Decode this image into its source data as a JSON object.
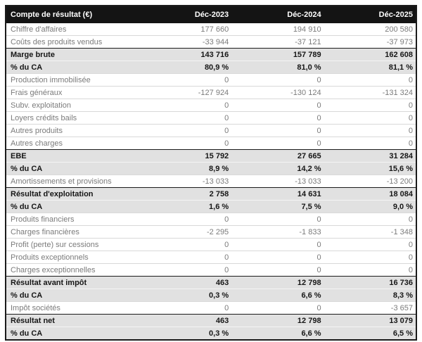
{
  "title": "Compte de résultat (€)",
  "colors": {
    "header_bg": "#141414",
    "header_text": "#ffffff",
    "highlight_row_bg": "#e1e1e1",
    "normal_text": "#7b7b7b",
    "bold_text": "#161616",
    "outer_border": "#1b1b1b",
    "row_divider": "#d9d9d9"
  },
  "chart_data": {
    "type": "table",
    "title": "Compte de résultat (€)",
    "columns": [
      "Compte de résultat (€)",
      "Déc-2023",
      "Déc-2024",
      "Déc-2025"
    ],
    "rows": [
      {
        "label": "Chiffre d'affaires",
        "values": [
          "177 660",
          "194 910",
          "200 580"
        ],
        "style": "normal"
      },
      {
        "label": "Coûts des produits vendus",
        "values": [
          "-33 944",
          "-37 121",
          "-37 973"
        ],
        "style": "normal"
      },
      {
        "label": "Marge brute",
        "values": [
          "143 716",
          "157 789",
          "162 608"
        ],
        "style": "highlight",
        "section_start": true
      },
      {
        "label": "% du CA",
        "values": [
          "80,9 %",
          "81,0 %",
          "81,1 %"
        ],
        "style": "highlight"
      },
      {
        "label": "Production immobilisée",
        "values": [
          "0",
          "0",
          "0"
        ],
        "style": "normal"
      },
      {
        "label": "Frais généraux",
        "values": [
          "-127 924",
          "-130 124",
          "-131 324"
        ],
        "style": "normal"
      },
      {
        "label": "Subv. exploitation",
        "values": [
          "0",
          "0",
          "0"
        ],
        "style": "normal"
      },
      {
        "label": "Loyers crédits bails",
        "values": [
          "0",
          "0",
          "0"
        ],
        "style": "normal"
      },
      {
        "label": "Autres produits",
        "values": [
          "0",
          "0",
          "0"
        ],
        "style": "normal"
      },
      {
        "label": "Autres charges",
        "values": [
          "0",
          "0",
          "0"
        ],
        "style": "normal"
      },
      {
        "label": "EBE",
        "values": [
          "15 792",
          "27 665",
          "31 284"
        ],
        "style": "highlight",
        "section_start": true
      },
      {
        "label": "% du CA",
        "values": [
          "8,9 %",
          "14,2 %",
          "15,6 %"
        ],
        "style": "highlight"
      },
      {
        "label": "Amortissements et provisions",
        "values": [
          "-13 033",
          "-13 033",
          "-13 200"
        ],
        "style": "normal"
      },
      {
        "label": "Résultat d'exploitation",
        "values": [
          "2 758",
          "14 631",
          "18 084"
        ],
        "style": "highlight",
        "section_start": true
      },
      {
        "label": "% du CA",
        "values": [
          "1,6 %",
          "7,5 %",
          "9,0 %"
        ],
        "style": "highlight"
      },
      {
        "label": "Produits financiers",
        "values": [
          "0",
          "0",
          "0"
        ],
        "style": "normal"
      },
      {
        "label": "Charges financières",
        "values": [
          "-2 295",
          "-1 833",
          "-1 348"
        ],
        "style": "normal"
      },
      {
        "label": "Profit (perte) sur cessions",
        "values": [
          "0",
          "0",
          "0"
        ],
        "style": "normal"
      },
      {
        "label": "Produits exceptionnels",
        "values": [
          "0",
          "0",
          "0"
        ],
        "style": "normal"
      },
      {
        "label": "Charges exceptionnelles",
        "values": [
          "0",
          "0",
          "0"
        ],
        "style": "normal"
      },
      {
        "label": "Résultat avant impôt",
        "values": [
          "463",
          "12 798",
          "16 736"
        ],
        "style": "highlight",
        "section_start": true
      },
      {
        "label": "% du CA",
        "values": [
          "0,3 %",
          "6,6 %",
          "8,3 %"
        ],
        "style": "highlight"
      },
      {
        "label": "Impôt sociétés",
        "values": [
          "0",
          "0",
          "-3 657"
        ],
        "style": "normal"
      },
      {
        "label": "Résultat net",
        "values": [
          "463",
          "12 798",
          "13 079"
        ],
        "style": "highlight",
        "section_start": true
      },
      {
        "label": "% du CA",
        "values": [
          "0,3 %",
          "6,6 %",
          "6,5 %"
        ],
        "style": "highlight"
      }
    ]
  }
}
